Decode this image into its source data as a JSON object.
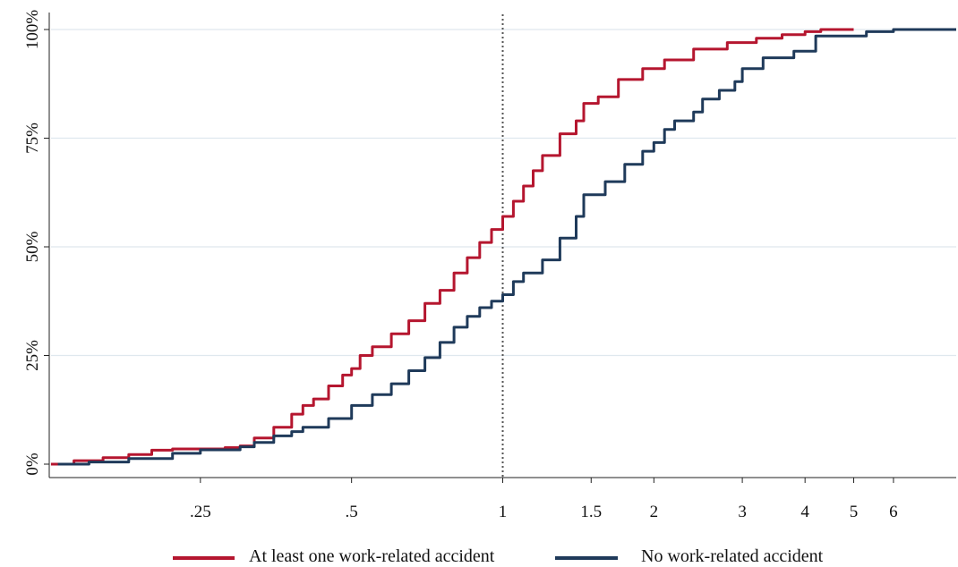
{
  "chart_data": {
    "type": "line",
    "step": true,
    "title": "",
    "xlabel": "",
    "ylabel": "",
    "x_scale": "log",
    "xlim": [
      0.125,
      8
    ],
    "ylim": [
      0,
      100
    ],
    "x_ticks": [
      {
        "value": 0.25,
        "label": ".25"
      },
      {
        "value": 0.5,
        "label": ".5"
      },
      {
        "value": 1,
        "label": "1"
      },
      {
        "value": 1.5,
        "label": "1.5"
      },
      {
        "value": 2,
        "label": "2"
      },
      {
        "value": 3,
        "label": "3"
      },
      {
        "value": 4,
        "label": "4"
      },
      {
        "value": 5,
        "label": "5"
      },
      {
        "value": 6,
        "label": "6"
      }
    ],
    "y_ticks": [
      {
        "value": 0,
        "label": "0%"
      },
      {
        "value": 25,
        "label": "25%"
      },
      {
        "value": 50,
        "label": "50%"
      },
      {
        "value": 75,
        "label": "75%"
      },
      {
        "value": 100,
        "label": "100%"
      }
    ],
    "grid": "horizontal",
    "reference_line": {
      "x": 1,
      "style": "dotted"
    },
    "legend_position": "bottom",
    "series": [
      {
        "name": "At least one work-related accident",
        "color": "#b5162f",
        "points": [
          [
            0.126,
            0
          ],
          [
            0.14,
            0.8
          ],
          [
            0.16,
            1.5
          ],
          [
            0.18,
            2.2
          ],
          [
            0.2,
            3.2
          ],
          [
            0.22,
            3.5
          ],
          [
            0.25,
            3.5
          ],
          [
            0.28,
            3.8
          ],
          [
            0.3,
            4.2
          ],
          [
            0.32,
            6
          ],
          [
            0.35,
            8.5
          ],
          [
            0.38,
            11.5
          ],
          [
            0.4,
            13.5
          ],
          [
            0.42,
            15
          ],
          [
            0.45,
            18
          ],
          [
            0.48,
            20.5
          ],
          [
            0.5,
            22
          ],
          [
            0.52,
            25
          ],
          [
            0.55,
            27
          ],
          [
            0.6,
            30
          ],
          [
            0.65,
            33
          ],
          [
            0.7,
            37
          ],
          [
            0.75,
            40
          ],
          [
            0.8,
            44
          ],
          [
            0.85,
            47.5
          ],
          [
            0.9,
            51
          ],
          [
            0.95,
            54
          ],
          [
            1.0,
            57
          ],
          [
            1.05,
            60.5
          ],
          [
            1.1,
            64
          ],
          [
            1.15,
            67.5
          ],
          [
            1.2,
            71
          ],
          [
            1.3,
            76
          ],
          [
            1.4,
            79
          ],
          [
            1.45,
            83
          ],
          [
            1.55,
            84.5
          ],
          [
            1.7,
            88.5
          ],
          [
            1.9,
            91
          ],
          [
            2.1,
            93
          ],
          [
            2.4,
            95.5
          ],
          [
            2.8,
            97
          ],
          [
            3.2,
            98
          ],
          [
            3.6,
            98.8
          ],
          [
            4.0,
            99.5
          ],
          [
            4.3,
            100
          ],
          [
            5.0,
            100
          ]
        ]
      },
      {
        "name": "No work-related accident",
        "color": "#1f3a5a",
        "points": [
          [
            0.13,
            0
          ],
          [
            0.15,
            0.5
          ],
          [
            0.18,
            1.3
          ],
          [
            0.22,
            2.5
          ],
          [
            0.25,
            3.3
          ],
          [
            0.3,
            4
          ],
          [
            0.32,
            5
          ],
          [
            0.35,
            6.5
          ],
          [
            0.38,
            7.5
          ],
          [
            0.4,
            8.5
          ],
          [
            0.45,
            10.5
          ],
          [
            0.5,
            13.5
          ],
          [
            0.55,
            16
          ],
          [
            0.6,
            18.5
          ],
          [
            0.65,
            21.5
          ],
          [
            0.7,
            24.5
          ],
          [
            0.75,
            28
          ],
          [
            0.8,
            31.5
          ],
          [
            0.85,
            34
          ],
          [
            0.9,
            36
          ],
          [
            0.95,
            37.5
          ],
          [
            1.0,
            39
          ],
          [
            1.05,
            42
          ],
          [
            1.1,
            44
          ],
          [
            1.2,
            47
          ],
          [
            1.3,
            52
          ],
          [
            1.4,
            57
          ],
          [
            1.45,
            62
          ],
          [
            1.6,
            65
          ],
          [
            1.75,
            69
          ],
          [
            1.9,
            72
          ],
          [
            2.0,
            74
          ],
          [
            2.1,
            77
          ],
          [
            2.2,
            79
          ],
          [
            2.4,
            81
          ],
          [
            2.5,
            84
          ],
          [
            2.7,
            86
          ],
          [
            2.9,
            88
          ],
          [
            3.0,
            91
          ],
          [
            3.3,
            93.5
          ],
          [
            3.8,
            95
          ],
          [
            4.0,
            95
          ],
          [
            4.2,
            98.5
          ],
          [
            5.0,
            98.5
          ],
          [
            5.3,
            99.5
          ],
          [
            6.0,
            100
          ],
          [
            8.0,
            100
          ]
        ]
      }
    ]
  }
}
